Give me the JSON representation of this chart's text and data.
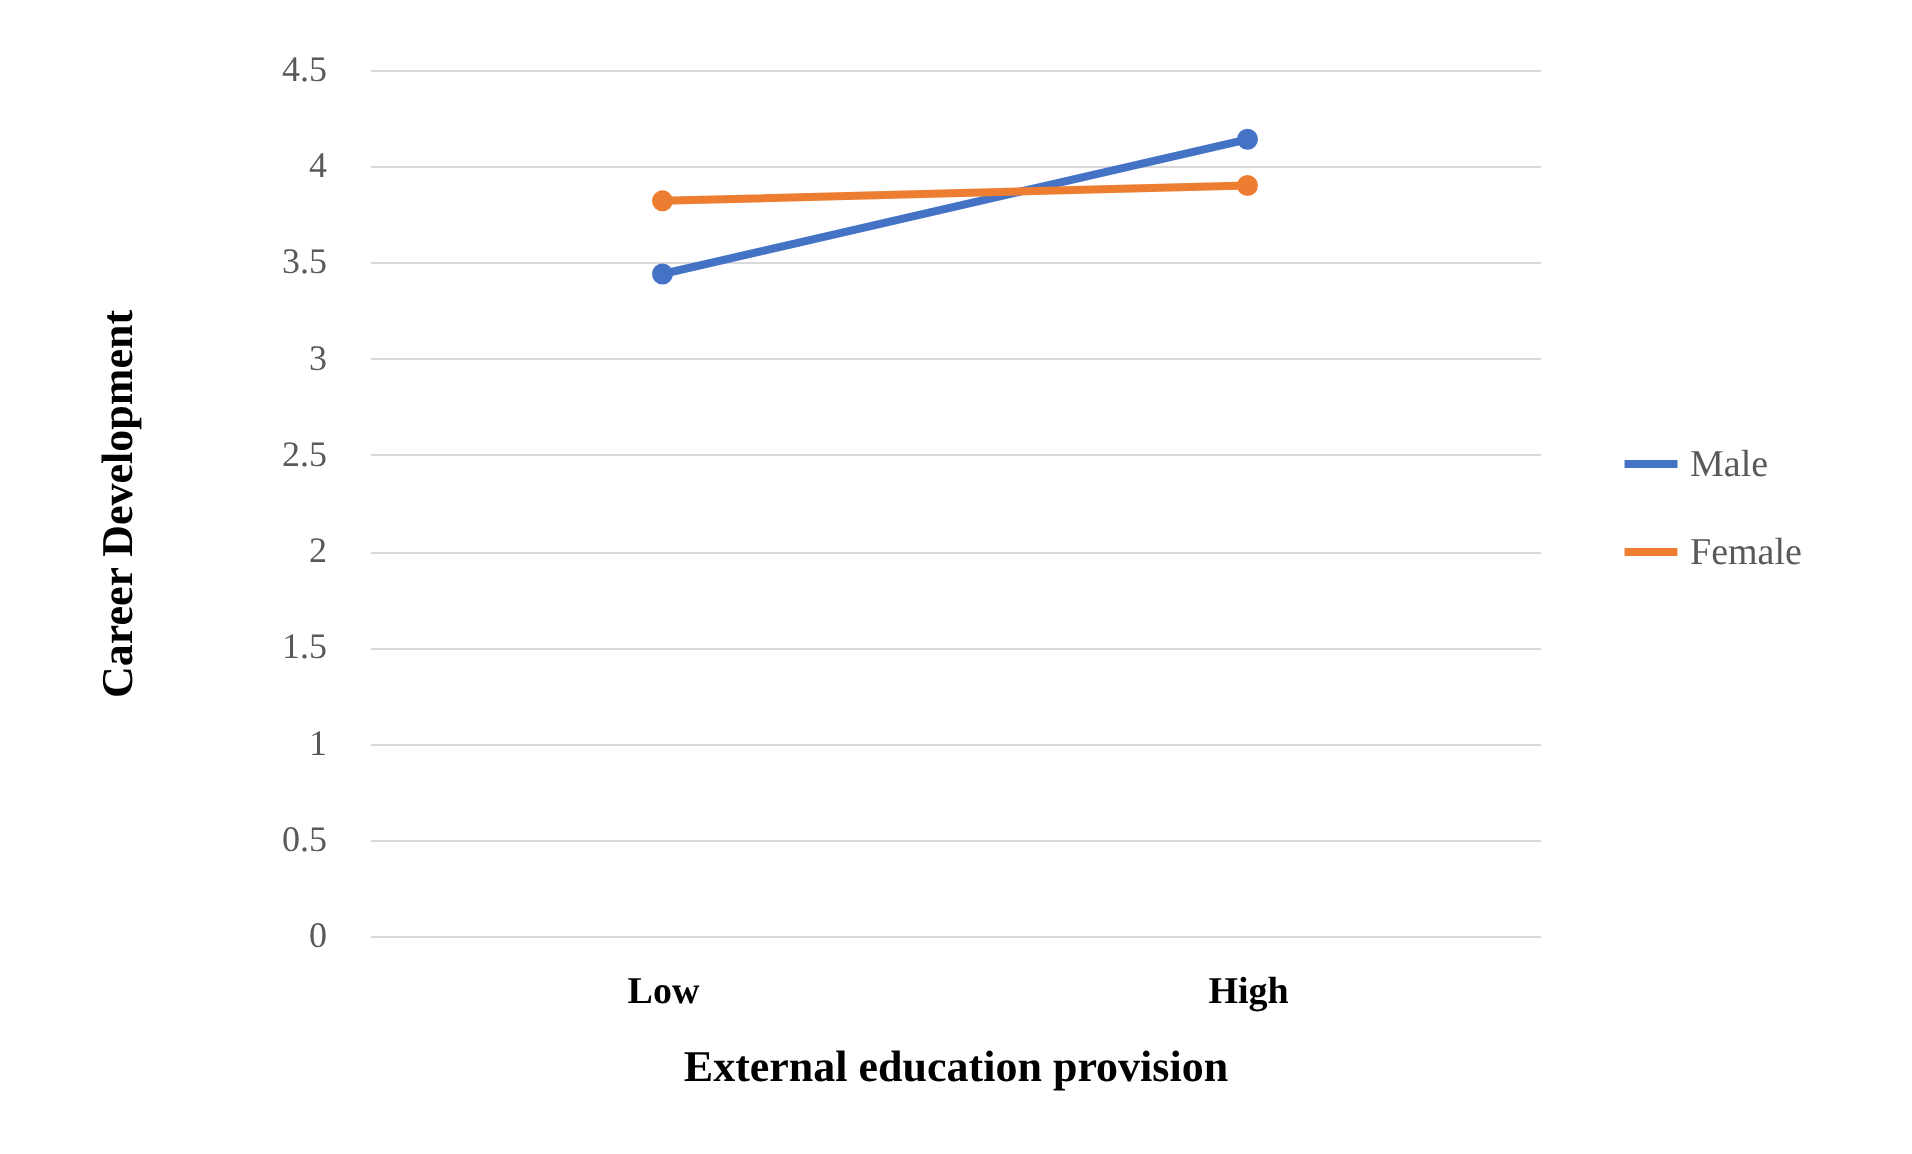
{
  "chart_data": {
    "type": "line",
    "xlabel": "External education provision",
    "ylabel": "Career Development",
    "categories": [
      "Low",
      "High"
    ],
    "series": [
      {
        "name": "Male",
        "color": "#4472c4",
        "values": [
          3.44,
          4.14
        ]
      },
      {
        "name": "Female",
        "color": "#ed7d31",
        "values": [
          3.82,
          3.9
        ]
      }
    ],
    "ylim": [
      0,
      4.5
    ],
    "yticks": [
      0,
      0.5,
      1,
      1.5,
      2,
      2.5,
      3,
      3.5,
      4,
      4.5
    ],
    "grid": "y",
    "legend": "right",
    "marker": "circle",
    "line_style": "solid"
  }
}
